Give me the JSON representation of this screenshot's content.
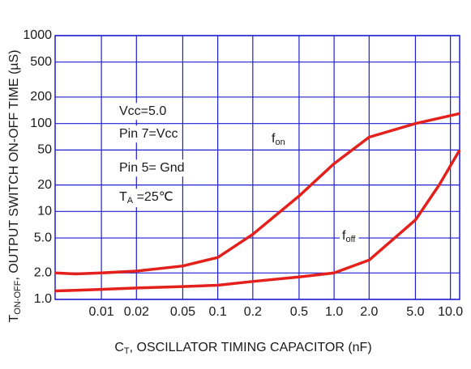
{
  "chart_data": {
    "type": "line",
    "y_label": {
      "text": "T",
      "sub": "ON-OFF",
      "rest": ", OUTPUT SWITCH ON-OFF TIME (µS)"
    },
    "x_label": {
      "text": "C",
      "sub": "T",
      "rest": ", OSCILLATOR TIMING CAPACITOR (nF)"
    },
    "x": [
      0.004,
      0.006,
      0.01,
      0.02,
      0.05,
      0.1,
      0.2,
      0.5,
      1,
      2,
      5,
      8,
      12
    ],
    "series": [
      {
        "name": "f",
        "subscript": "on",
        "color": "#e3201b",
        "values": [
          2.0,
          1.95,
          2.0,
          2.1,
          2.4,
          3.0,
          5.5,
          15,
          35,
          70,
          100,
          115,
          130
        ]
      },
      {
        "name": "f",
        "subscript": "off",
        "color": "#e3201b",
        "values": [
          1.25,
          1.27,
          1.3,
          1.35,
          1.4,
          1.45,
          1.6,
          1.8,
          2.0,
          2.8,
          8,
          20,
          50
        ]
      }
    ],
    "annotations": [
      {
        "text": "Vcc=5.0"
      },
      {
        "text": "Pin 7=Vcc"
      },
      {
        "text": "Pin 5= Gnd"
      },
      {
        "text": "T",
        "sub": "A",
        "rest": " =25℃"
      }
    ],
    "xscale": "log",
    "yscale": "log",
    "grid": true,
    "grid_color": "#1f1fd0",
    "xlim": [
      0.004,
      12
    ],
    "ylim": [
      1,
      1000
    ],
    "xticks": [
      0.01,
      0.02,
      0.05,
      0.1,
      0.2,
      0.5,
      {
        "value": 1,
        "label": "1.0"
      },
      {
        "value": 2,
        "label": "2.0"
      },
      {
        "value": 5,
        "label": "5.0"
      },
      {
        "value": 10,
        "label": "10.0"
      }
    ],
    "yticks": [
      {
        "value": 1,
        "label": "1.0"
      },
      {
        "value": 2,
        "label": "2.0"
      },
      {
        "value": 5,
        "label": "5.0"
      },
      10,
      20,
      50,
      100,
      200,
      500,
      1000
    ]
  }
}
